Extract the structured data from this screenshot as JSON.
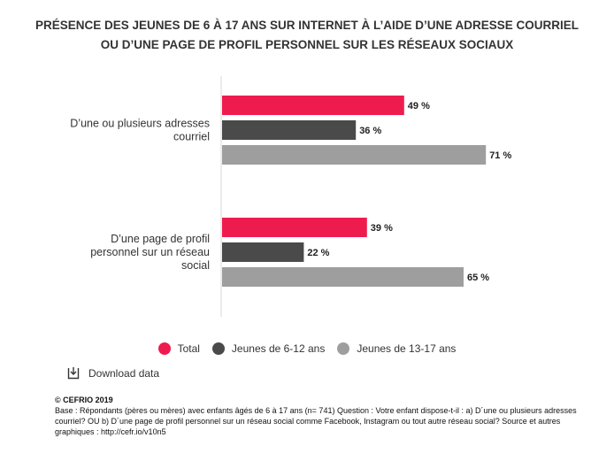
{
  "title_line1": "PRÉSENCE DES JEUNES DE 6 À 17 ANS SUR INTERNET À L’AIDE D’UNE ADRESSE COURRIEL",
  "title_line2": "OU D’UNE PAGE DE PROFIL PERSONNEL SUR LES RÉSEAUX SOCIAUX",
  "download_label": "Download data",
  "copyright": "© CEFRIO  2019",
  "footnote": "Base : Répondants (pères ou mères) avec enfants âgés de 6 à 17 ans (n= 741) Question : Votre enfant dispose-t-il : a) D´une ou plusieurs adresses courriel? OU b) D´une page de profil personnel sur un réseau social comme Facebook, Instagram ou tout autre réseau social? Source et autres graphiques : http://cefr.io/v10n5",
  "colors": {
    "total": "#ee1c4e",
    "young": "#4a4a4a",
    "old": "#9e9e9e"
  },
  "chart_data": {
    "type": "bar",
    "orientation": "horizontal",
    "title": "PRÉSENCE DES JEUNES DE 6 À 17 ANS SUR INTERNET À L’AIDE D’UNE ADRESSE COURRIEL OU D’UNE PAGE DE PROFIL PERSONNEL SUR LES RÉSEAUX SOCIAUX",
    "categories": [
      [
        "D’une ou plusieurs adresses",
        "courriel"
      ],
      [
        "D’une page de profil",
        "personnel sur un réseau",
        "social"
      ]
    ],
    "series": [
      {
        "name": "Total",
        "values": [
          49,
          39
        ],
        "color": "#ee1c4e"
      },
      {
        "name": "Jeunes de 6-12 ans",
        "values": [
          36,
          22
        ],
        "color": "#4a4a4a"
      },
      {
        "name": "Jeunes de 13-17 ans",
        "values": [
          71,
          65
        ],
        "color": "#9e9e9e"
      }
    ],
    "value_suffix": " %",
    "xlim": [
      0,
      100
    ],
    "grid": false,
    "legend_position": "bottom"
  }
}
